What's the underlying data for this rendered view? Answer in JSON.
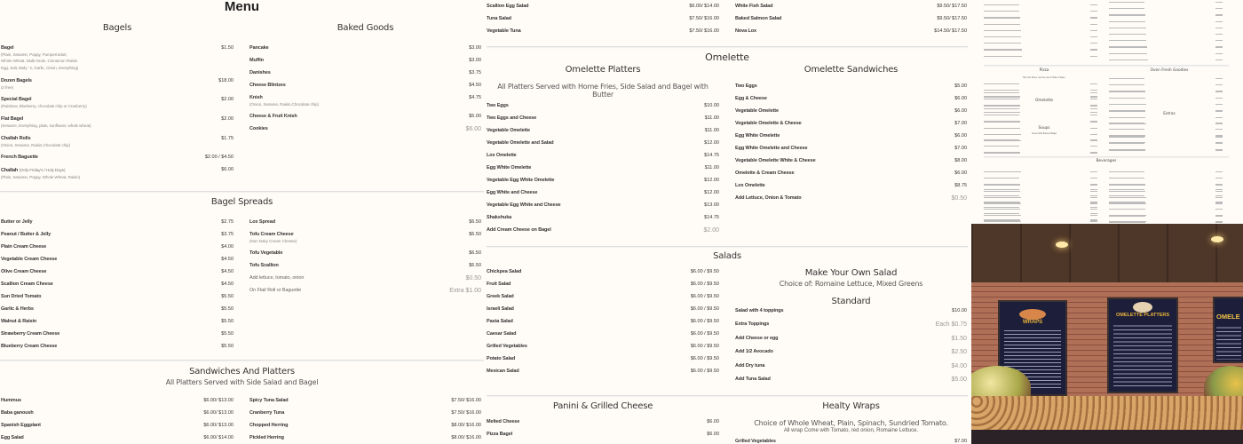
{
  "menu_title": "Menu",
  "bagels": {
    "heading": "Bagels",
    "items": [
      {
        "name": "Bagel",
        "desc": [
          "(Plain, Sesame, Poppy, Pumpernickel,",
          "Whole Wheat, Multi-Grain, Cinnamon Raisin",
          "Egg, Salt, Baily ' s, Garlic, Onion, Everything)"
        ],
        "price": "$1.50"
      },
      {
        "name": "Dozen Bagels",
        "desc": [
          "(2 free)"
        ],
        "price": "$18.00"
      },
      {
        "name": "Special Bagel",
        "desc": [
          "(Rainbow, Blueberry, chocolate chip or Cranberry)"
        ],
        "price": "$2.00"
      },
      {
        "name": "Flat Bagel",
        "desc": [
          "(Sesame, Everything, plain, sunflower, whole wheat)"
        ],
        "price": "$2.00"
      },
      {
        "name": "Challah Rolls",
        "desc": [
          "(Onion, Sesame, Raisin,Chocolate chip)"
        ],
        "price": "$1.75"
      },
      {
        "name": "French Baguette",
        "price": "$2.00 / $4.50"
      },
      {
        "name": "Challah",
        "inline": "(Only Friday's / Holy Days)",
        "desc": [
          "(Plain, Sesame, Poppy, Whole Wheat, Raisin)"
        ],
        "price": "$6.00"
      }
    ]
  },
  "baked": {
    "heading": "Baked Goods",
    "items": [
      {
        "name": "Pancake",
        "price": "$3.00"
      },
      {
        "name": "Muffin",
        "price": "$3.00"
      },
      {
        "name": "Danishes",
        "price": "$3.75"
      },
      {
        "name": "Cheese Blintzes",
        "price": "$4.50"
      },
      {
        "name": "Knish",
        "desc": [
          "(Onion, Sesame, Raisin,Chocolate chip)"
        ],
        "price": "$4.75"
      },
      {
        "name": "Cheese & Fruit Knish",
        "price": "$5.00"
      },
      {
        "name": "Cookies",
        "price": "$6.00",
        "light": true
      }
    ]
  },
  "spreads": {
    "heading": "Bagel Spreads",
    "left": [
      {
        "name": "Butter or Jelly",
        "price": "$2.75"
      },
      {
        "name": "Peanut / Butter & Jelly",
        "price": "$3.75"
      },
      {
        "name": "Plain Cream Cheese",
        "price": "$4.00"
      },
      {
        "name": "Vegetable Cream Cheese",
        "price": "$4.50"
      },
      {
        "name": "Olive Cream Cheese",
        "price": "$4.50"
      },
      {
        "name": "Scallion Cream Cheese",
        "price": "$4.50"
      },
      {
        "name": "Sun Dried Tomato",
        "price": "$5.50"
      },
      {
        "name": "Garlic & Herbs",
        "price": "$5.50"
      },
      {
        "name": "Walnut & Raisin",
        "price": "$5.50"
      },
      {
        "name": "Strawberry Cream Cheese",
        "price": "$5.50"
      },
      {
        "name": "Blueberry Cream Cheese",
        "price": "$5.50"
      }
    ],
    "right": [
      {
        "name": "Lox Spread",
        "price": "$6.50"
      },
      {
        "name": "Tofu Cream Cheese",
        "desc": [
          "(Non Dairy Cream Cheese)"
        ],
        "price": "$6.50"
      },
      {
        "name": "Tofu Vegetable",
        "price": "$6.50"
      },
      {
        "name": "Tofu Scallion",
        "price": "$6.50"
      },
      {
        "name": "Add lettuce, tomato, onion",
        "price": "$0.50",
        "light": true,
        "plain": true
      },
      {
        "name": "On Flat/ Roll or Baguette",
        "price": "Extra $1.00",
        "light": true,
        "plain": true
      }
    ]
  },
  "sandwiches": {
    "heading": "Sandwiches And Platters",
    "subtitle": "All Platters Served with Side Salad and Bagel",
    "left": [
      {
        "name": "Hummus",
        "price": "$6.00/ $13.00"
      },
      {
        "name": "Baba ganoush",
        "price": "$6.00/ $13.00"
      },
      {
        "name": "Spanish Eggplant",
        "price": "$6.00/ $13.00"
      },
      {
        "name": "Egg Salad",
        "price": "$6.00/ $14.00"
      }
    ],
    "right": [
      {
        "name": "Spicy Tuna Salad",
        "price": "$7.50/ $16.00"
      },
      {
        "name": "Cranberry Tuna",
        "price": "$7.50/ $16.00"
      },
      {
        "name": "Chopped Herring",
        "price": "$8.00/ $16.00"
      },
      {
        "name": "Pickled Herring",
        "price": "$8.00/ $16.00"
      }
    ],
    "left_cont": [
      {
        "name": "Scallion Egg Salad",
        "price": "$6.00/ $14.00"
      },
      {
        "name": "Tuna Salad",
        "price": "$7.50/ $16.00"
      },
      {
        "name": "Vegetable Tuna",
        "price": "$7.50/ $16.00"
      }
    ],
    "right_cont": [
      {
        "name": "White Fish Salad",
        "price": "$9.50/ $17.50"
      },
      {
        "name": "Baked Salmon Salad",
        "price": "$9.50/ $17.50"
      },
      {
        "name": "Nova Lox",
        "price": "$14.50/ $17.50"
      }
    ]
  },
  "omelette": {
    "heading": "Omelette",
    "platters": {
      "heading": "Omelette Platters",
      "note": "All Platters Served with Home Fries, Side Salad and Bagel with Butter",
      "items": [
        {
          "name": "Two Eggs",
          "price": "$10.00"
        },
        {
          "name": "Two Eggs and Cheese",
          "price": "$11.00"
        },
        {
          "name": "Vegetable Omelette",
          "price": "$11.00"
        },
        {
          "name": "Vegetable Omelette and Salad",
          "price": "$12.00"
        },
        {
          "name": "Lox Omelette",
          "price": "$14.75"
        },
        {
          "name": "Egg White Omelette",
          "price": "$11.00"
        },
        {
          "name": "Vegetable Egg White Omelette",
          "price": "$12.00"
        },
        {
          "name": "Egg White and Cheese",
          "price": "$12.00"
        },
        {
          "name": "Vegetable Egg White and Cheese",
          "price": "$13.00"
        },
        {
          "name": "Shakshuka",
          "price": "$14.75"
        },
        {
          "name": "Add Cream Cheese on Bagel",
          "price": "$2.00",
          "light": true
        }
      ]
    },
    "sandwiches": {
      "heading": "Omelette Sandwiches",
      "items": [
        {
          "name": "Two Eggs",
          "price": "$5.00"
        },
        {
          "name": "Egg & Cheese",
          "price": "$6.00"
        },
        {
          "name": "Vegetable Omelette",
          "price": "$6.00"
        },
        {
          "name": "Vegetable Omelette & Cheese",
          "price": "$7.00"
        },
        {
          "name": "Egg White Omelette",
          "price": "$6.00"
        },
        {
          "name": "Egg White Omelette and Cheese",
          "price": "$7.00"
        },
        {
          "name": "Vegetable Omelette White & Cheese",
          "price": "$8.00"
        },
        {
          "name": "Omelette & Cream Cheese",
          "price": "$6.00"
        },
        {
          "name": "Lox Omelette",
          "price": "$8.75"
        },
        {
          "name": "Add Lettuce, Onion & Tomato",
          "price": "$0.50",
          "light": true
        }
      ]
    }
  },
  "salads": {
    "heading": "Salads",
    "items": [
      {
        "name": "Chickpea Salad",
        "price": "$6.00 / $9.50"
      },
      {
        "name": "Fruit Salad",
        "price": "$6.00 / $9.50"
      },
      {
        "name": "Greek Salad",
        "price": "$6.00 / $9.50"
      },
      {
        "name": "Israeli Salad",
        "price": "$6.00 / $9.50"
      },
      {
        "name": "Pasta Salad",
        "price": "$6.00 / $9.50"
      },
      {
        "name": "Caesar Salad",
        "price": "$6.00 / $9.50"
      },
      {
        "name": "Grilled Vegetables",
        "price": "$6.00 / $9.50"
      },
      {
        "name": "Potato Salad",
        "price": "$6.00 / $9.50"
      },
      {
        "name": "Mexican Salad",
        "price": "$6.00 / $9.50"
      }
    ],
    "own": {
      "heading": "Make Your Own Salad",
      "subtitle": "Choice of: Romaine Lettuce, Mixed Greens",
      "standard": "Standard",
      "items": [
        {
          "name": "Salad with 4 toppings",
          "price": "$10.00"
        },
        {
          "name": "Extra Toppings",
          "price": "Each $0.75",
          "light": true
        },
        {
          "name": "Add Cheese or egg",
          "price": "$1.50",
          "light": true
        },
        {
          "name": "Add 1/2 Avocado",
          "price": "$2.50",
          "light": true
        },
        {
          "name": "Add Dry tuna",
          "price": "$4.00",
          "light": true
        },
        {
          "name": "Add Tuna Salad",
          "price": "$5.00",
          "light": true
        }
      ]
    }
  },
  "panini": {
    "heading": "Panini & Grilled Cheese",
    "items": [
      {
        "name": "Melted Cheese",
        "price": "$6.00"
      },
      {
        "name": "Pizza Bagel",
        "price": "$6.00"
      }
    ]
  },
  "wraps": {
    "heading": "Healty Wraps",
    "subtitle": "Choice of Whole Wheat, Plain, Spinach, Sundried Tomato.",
    "note": "All wrap Come with Tomato, red onion, Romaine Lettuce.",
    "items": [
      {
        "name": "Grilled Vegetables",
        "price": "$7.00"
      }
    ]
  },
  "mini_menu": {
    "pizza": "Pizza",
    "pizza_note": "Buy Two Slices, Get free can of Soda or Water",
    "oven": "Oven Fresh Goodies",
    "omelette": "Omelette",
    "soups": "Soups",
    "soups_note": "Served with Buttered Bagel",
    "extras": "Extras",
    "beverages": "Beverages"
  },
  "photo": {
    "signs": [
      "WRAPS",
      "OMELETTE PLATTERS",
      "OMELE"
    ]
  },
  "colors": {
    "background": "#fffcf7",
    "sign_title": "#e8b23a",
    "board": "#1d1f3a",
    "brick": "#9a5a45"
  }
}
